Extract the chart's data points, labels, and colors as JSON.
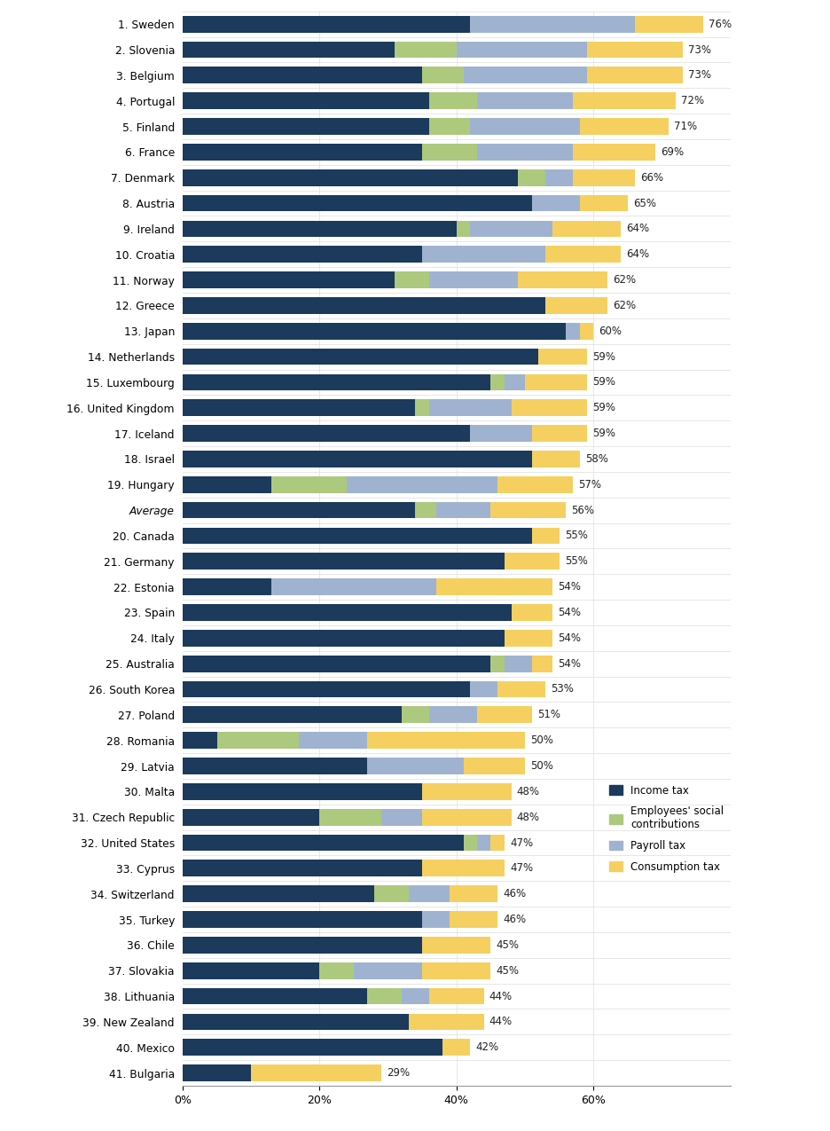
{
  "countries": [
    "1. Sweden",
    "2. Slovenia",
    "3. Belgium",
    "4. Portugal",
    "5. Finland",
    "6. France",
    "7. Denmark",
    "8. Austria",
    "9. Ireland",
    "10. Croatia",
    "11. Norway",
    "12. Greece",
    "13. Japan",
    "14. Netherlands",
    "15. Luxembourg",
    "16. United Kingdom",
    "17. Iceland",
    "18. Israel",
    "19. Hungary",
    "Average",
    "20. Canada",
    "21. Germany",
    "22. Estonia",
    "23. Spain",
    "24. Italy",
    "25. Australia",
    "26. South Korea",
    "27. Poland",
    "28. Romania",
    "29. Latvia",
    "30. Malta",
    "31. Czech Republic",
    "32. United States",
    "33. Cyprus",
    "34. Switzerland",
    "35. Turkey",
    "36. Chile",
    "37. Slovakia",
    "38. Lithuania",
    "39. New Zealand",
    "40. Mexico",
    "41. Bulgaria"
  ],
  "income_tax": [
    42,
    31,
    35,
    36,
    36,
    35,
    49,
    51,
    40,
    35,
    31,
    53,
    56,
    52,
    45,
    34,
    42,
    51,
    13,
    34,
    51,
    47,
    13,
    48,
    47,
    45,
    42,
    32,
    5,
    27,
    35,
    20,
    41,
    35,
    28,
    35,
    35,
    20,
    27,
    33,
    38,
    10
  ],
  "employees_social": [
    0,
    9,
    6,
    7,
    6,
    8,
    4,
    0,
    2,
    0,
    5,
    0,
    0,
    0,
    2,
    2,
    0,
    0,
    11,
    3,
    0,
    0,
    0,
    0,
    0,
    2,
    0,
    4,
    12,
    0,
    0,
    9,
    2,
    0,
    5,
    0,
    0,
    5,
    5,
    0,
    0,
    0
  ],
  "payroll_tax": [
    24,
    19,
    18,
    14,
    16,
    14,
    4,
    7,
    12,
    18,
    13,
    0,
    2,
    0,
    3,
    12,
    9,
    0,
    22,
    8,
    0,
    0,
    24,
    0,
    0,
    4,
    4,
    7,
    10,
    14,
    0,
    6,
    2,
    0,
    6,
    4,
    0,
    10,
    4,
    0,
    0,
    0
  ],
  "consumption_tax": [
    10,
    14,
    14,
    15,
    13,
    12,
    9,
    7,
    10,
    11,
    13,
    9,
    2,
    7,
    9,
    11,
    8,
    7,
    11,
    11,
    4,
    8,
    17,
    6,
    7,
    3,
    7,
    8,
    23,
    9,
    13,
    13,
    2,
    12,
    7,
    7,
    10,
    10,
    8,
    11,
    4,
    19
  ],
  "totals": [
    76,
    73,
    73,
    72,
    71,
    69,
    66,
    65,
    64,
    64,
    62,
    62,
    60,
    59,
    59,
    59,
    59,
    58,
    57,
    56,
    55,
    55,
    54,
    54,
    54,
    54,
    53,
    51,
    50,
    50,
    48,
    48,
    47,
    47,
    46,
    46,
    45,
    45,
    44,
    44,
    42,
    29
  ],
  "colors": {
    "income_tax": "#1b3a5c",
    "employees_social": "#adc97e",
    "payroll_tax": "#9fb3d1",
    "consumption_tax": "#f5d060"
  },
  "xlim": [
    0,
    80
  ],
  "xticks": [
    0,
    20,
    40,
    60
  ],
  "xticklabels": [
    "0%",
    "20%",
    "40%",
    "60%"
  ],
  "bar_height": 0.65,
  "background_color": "#ffffff",
  "legend_labels": [
    "Income tax",
    "Employees' social\ncontributions",
    "Payroll tax",
    "Consumption tax"
  ]
}
